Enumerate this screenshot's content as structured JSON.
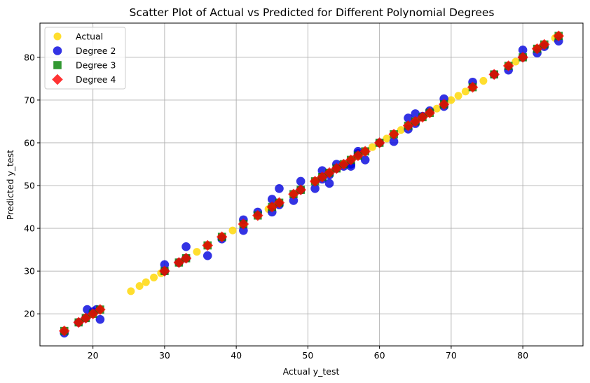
{
  "chart_data": {
    "type": "scatter",
    "title": "Scatter Plot of Actual vs Predicted for Different Polynomial Degrees",
    "xlabel": "Actual y_test",
    "ylabel": "Predicted y_test",
    "xlim": [
      12.6,
      88.4
    ],
    "ylim": [
      12.5,
      88.0
    ],
    "xticks": [
      20,
      30,
      40,
      50,
      60,
      70,
      80
    ],
    "yticks": [
      20,
      30,
      40,
      50,
      60,
      70,
      80
    ],
    "grid": true,
    "legend_position": "top-left",
    "series": [
      {
        "name": "Actual",
        "marker": "circle",
        "color": "#FFD700",
        "x": [
          16,
          18,
          19,
          20,
          21,
          25.3,
          26.5,
          27.4,
          28.5,
          29.5,
          30,
          32,
          33,
          34.5,
          36,
          38,
          39.5,
          41,
          43,
          44.5,
          45,
          46,
          48,
          49,
          51,
          52,
          53,
          54,
          55,
          56,
          57,
          58,
          59,
          60,
          61,
          62,
          63,
          64,
          65,
          66,
          67,
          68,
          69,
          70,
          71,
          72,
          73,
          74.5,
          76,
          78,
          79,
          80,
          82,
          83,
          84.5,
          85
        ],
        "y": [
          16,
          18,
          19,
          20,
          21,
          25.3,
          26.5,
          27.4,
          28.5,
          29.5,
          30,
          32,
          33,
          34.5,
          36,
          38,
          39.5,
          41,
          43,
          44.5,
          45,
          46,
          48,
          49,
          51,
          52,
          53,
          54,
          55,
          56,
          57,
          58,
          59,
          60,
          61,
          62,
          63,
          64,
          65,
          66,
          67,
          68,
          69,
          70,
          71,
          72,
          73,
          74.5,
          76,
          78,
          79,
          80,
          82,
          83,
          84.5,
          85
        ]
      },
      {
        "name": "Degree 2",
        "marker": "circle",
        "color": "#0000DD",
        "x": [
          16,
          18,
          19,
          19.2,
          20,
          20.5,
          21,
          30,
          30,
          32,
          33,
          33,
          36,
          38,
          41,
          41,
          43,
          45,
          45,
          46,
          46,
          48,
          49,
          49,
          51,
          52,
          52,
          53,
          53,
          54,
          54,
          55,
          56,
          56,
          57,
          57,
          58,
          60,
          62,
          64,
          64,
          65,
          65,
          66,
          67,
          69,
          69,
          73,
          76,
          78,
          80,
          80,
          82,
          83,
          85
        ],
        "y": [
          15.5,
          18,
          19,
          21,
          20.5,
          21,
          18.7,
          31.5,
          30,
          32,
          33,
          35.7,
          33.6,
          37.5,
          39.5,
          42,
          43.8,
          46.8,
          43.8,
          49.3,
          45.5,
          46.5,
          51,
          49,
          49.3,
          51.5,
          53.5,
          50.5,
          52.5,
          55,
          54,
          54.5,
          55,
          54.5,
          58,
          57.5,
          56,
          60,
          60.3,
          63.2,
          65.8,
          66.8,
          64.5,
          66.2,
          67.5,
          70.3,
          68.5,
          74.2,
          76,
          77,
          81.7,
          80,
          81,
          82.5,
          83.8
        ]
      },
      {
        "name": "Degree 3",
        "marker": "square",
        "color": "#008000",
        "x": [
          16,
          18,
          19,
          20,
          21,
          30,
          32,
          33,
          36,
          38,
          41,
          43,
          45,
          46,
          48,
          49,
          51,
          52,
          53,
          54,
          55,
          56,
          57,
          58,
          60,
          62,
          64,
          65,
          66,
          67,
          69,
          73,
          76,
          78,
          80,
          82,
          83,
          85
        ],
        "y": [
          16,
          18,
          19,
          20,
          21,
          30,
          32,
          33,
          36,
          38,
          41,
          43,
          45,
          46,
          48,
          49,
          51,
          52,
          53,
          54,
          55,
          56,
          57,
          58,
          60,
          62,
          64,
          65,
          66,
          67,
          69,
          73,
          76,
          78,
          80,
          82,
          83,
          85
        ]
      },
      {
        "name": "Degree 4",
        "marker": "diamond",
        "color": "#FF0000",
        "x": [
          16,
          18,
          19,
          20,
          21,
          30,
          32,
          33,
          36,
          38,
          41,
          43,
          45,
          46,
          48,
          49,
          51,
          52,
          53,
          54,
          55,
          56,
          57,
          58,
          60,
          62,
          64,
          65,
          66,
          67,
          69,
          73,
          76,
          78,
          80,
          82,
          83,
          85
        ],
        "y": [
          16,
          18,
          19,
          20,
          21,
          30,
          32,
          33,
          36,
          38,
          41,
          43,
          45,
          46,
          48,
          49,
          51,
          52,
          53,
          54,
          55,
          56,
          57,
          58,
          60,
          62,
          64,
          65,
          66,
          67,
          69,
          73,
          76,
          78,
          80,
          82,
          83,
          85
        ]
      }
    ]
  }
}
